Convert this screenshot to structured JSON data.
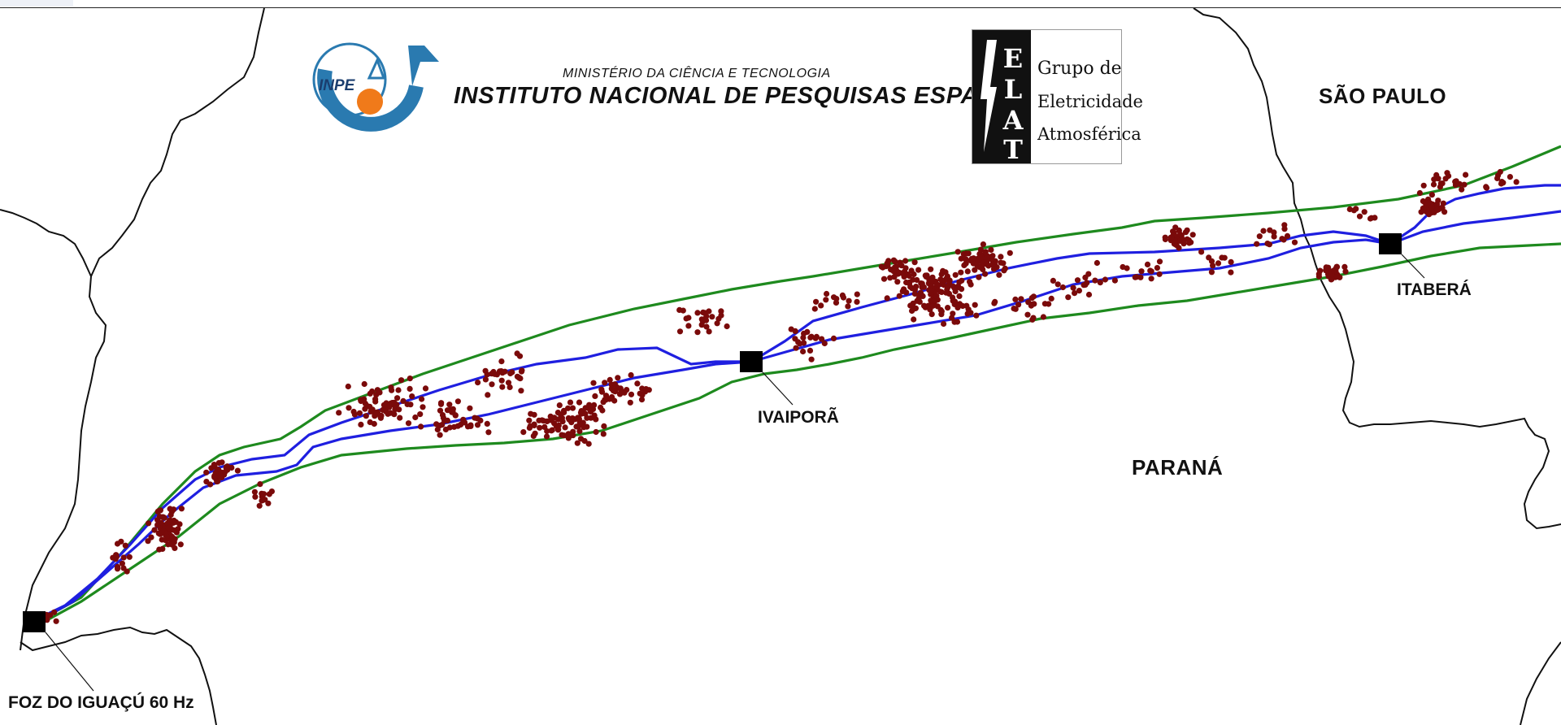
{
  "header": {
    "ministry": "MINISTÉRIO DA CIÊNCIA E TECNOLOGIA",
    "institute": "INSTITUTO NACIONAL DE PESQUISAS ESPACIAIS",
    "inpe_logo_text": "INPE",
    "elat_letters": "ELAT",
    "elat_line1": "Grupo de",
    "elat_line2": "Eletricidade",
    "elat_line3": "Atmosférica"
  },
  "map": {
    "states": [
      "SÃO PAULO",
      "PARANÁ"
    ],
    "stations": [
      "FOZ DO IGUAÇÚ 60 Hz",
      "IVAIPORÃ",
      "ITABERÁ"
    ],
    "colors": {
      "transmission_line": "#1f1fe0",
      "corridor_boundary": "#1e8a1e",
      "lightning_stroke": "#7a0a0a",
      "state_border": "#111111",
      "substation": "#000000"
    }
  }
}
